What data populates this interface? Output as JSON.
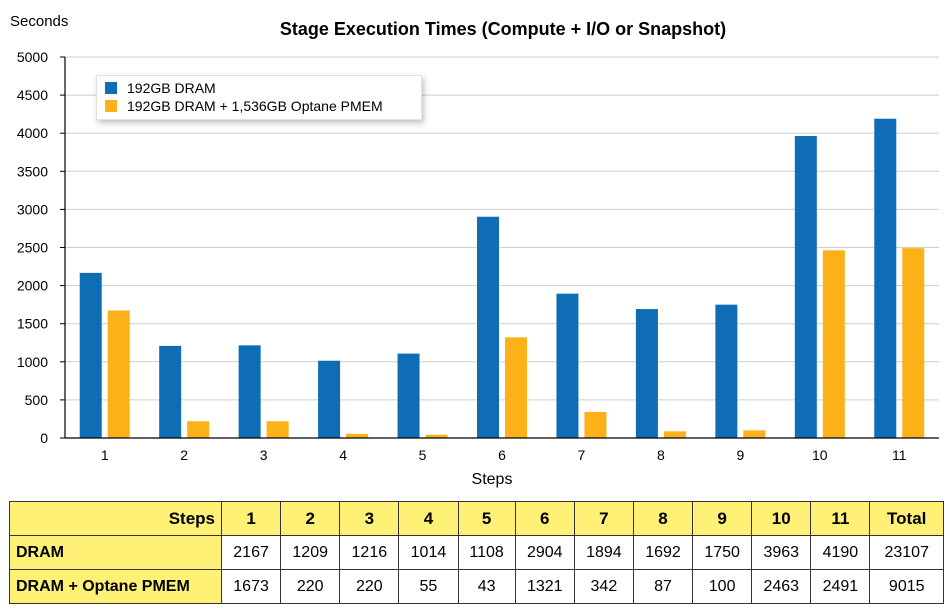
{
  "chart_data": {
    "type": "bar",
    "title": "Stage Execution Times (Compute + I/O or Snapshot)",
    "ylabel": "Seconds",
    "xlabel": "Steps",
    "ylim": [
      0,
      5000
    ],
    "yticks": [
      0,
      500,
      1000,
      1500,
      2000,
      2500,
      3000,
      3500,
      4000,
      4500,
      5000
    ],
    "categories": [
      "1",
      "2",
      "3",
      "4",
      "5",
      "6",
      "7",
      "8",
      "9",
      "10",
      "11"
    ],
    "series": [
      {
        "name": "192GB DRAM",
        "color": "#0f6db5",
        "values": [
          2167,
          1209,
          1216,
          1014,
          1108,
          2904,
          1894,
          1692,
          1750,
          3963,
          4190
        ]
      },
      {
        "name": "192GB DRAM + 1,536GB Optane PMEM",
        "color": "#fbb117",
        "values": [
          1673,
          220,
          220,
          55,
          43,
          1321,
          342,
          87,
          100,
          2463,
          2491
        ]
      }
    ],
    "legend_position": "top-left",
    "grid": "horizontal"
  },
  "table": {
    "header_label": "Steps",
    "columns": [
      "1",
      "2",
      "3",
      "4",
      "5",
      "6",
      "7",
      "8",
      "9",
      "10",
      "11",
      "Total"
    ],
    "rows": [
      {
        "label": "DRAM",
        "values": [
          "2167",
          "1209",
          "1216",
          "1014",
          "1108",
          "2904",
          "1894",
          "1692",
          "1750",
          "3963",
          "4190",
          "23107"
        ]
      },
      {
        "label": "DRAM + Optane PMEM",
        "values": [
          "1673",
          "220",
          "220",
          "55",
          "43",
          "1321",
          "342",
          "87",
          "100",
          "2463",
          "2491",
          "9015"
        ]
      }
    ]
  }
}
